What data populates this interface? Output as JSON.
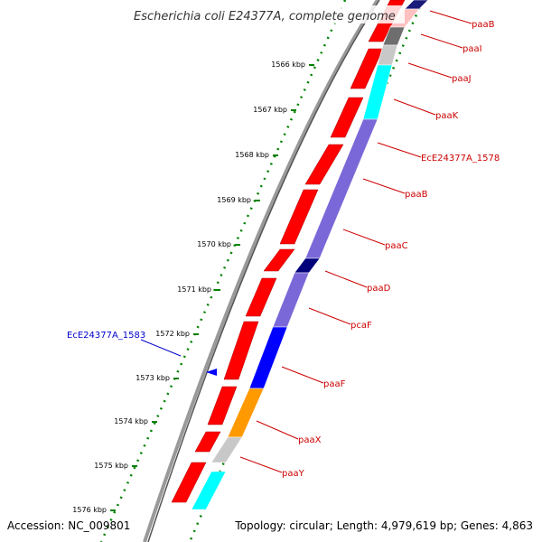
{
  "header": {
    "title": "Escherichia coli E24377A, complete genome"
  },
  "footer": {
    "accession": "Accession: NC_009801",
    "topology": "Topology: circular; Length: 4,979,619 bp; Genes: 4,863"
  },
  "colors": {
    "forward_gene": "#ff0000",
    "tick_outer": "#008000",
    "label_right": "#cc0000",
    "label_left": "#0000cc",
    "backbone": "#808080"
  },
  "scale": {
    "unit": "kbp",
    "ticks": [
      "1566 kbp",
      "1567 kbp",
      "1568 kbp",
      "1569 kbp",
      "1570 kbp",
      "1571 kbp",
      "1572 kbp",
      "1573 kbp",
      "1574 kbp",
      "1575 kbp",
      "1576 kbp"
    ]
  },
  "forward_genes": [
    {
      "name": "paaB",
      "color": "#ff0000"
    },
    {
      "name": "paaI",
      "color": "#ff0000"
    },
    {
      "name": "paaJ",
      "color": "#ff0000"
    },
    {
      "name": "paaK",
      "color": "#ff0000"
    }
  ],
  "right_labels": [
    "paaB",
    "paaI",
    "paaJ",
    "paaK",
    "EcE24377A_1578",
    "paaB",
    "paaC",
    "paaD",
    "pcaF",
    "paaF",
    "paaX",
    "paaY"
  ],
  "right_segments": [
    {
      "color": "#1a1a7a"
    },
    {
      "color": "#ffc0c0"
    },
    {
      "color": "#6e6e6e"
    },
    {
      "color": "#c8c8c8"
    },
    {
      "color": "#00ffff"
    },
    {
      "color": "#7b68d8"
    },
    {
      "color": "#00007a"
    },
    {
      "color": "#7b68d8"
    },
    {
      "color": "#0000ff"
    },
    {
      "color": "#ff9900"
    },
    {
      "color": "#c8c8c8"
    },
    {
      "color": "#00ffff"
    }
  ],
  "left_label": {
    "text": "EcE24377A_1583",
    "color": "#0000cc"
  }
}
